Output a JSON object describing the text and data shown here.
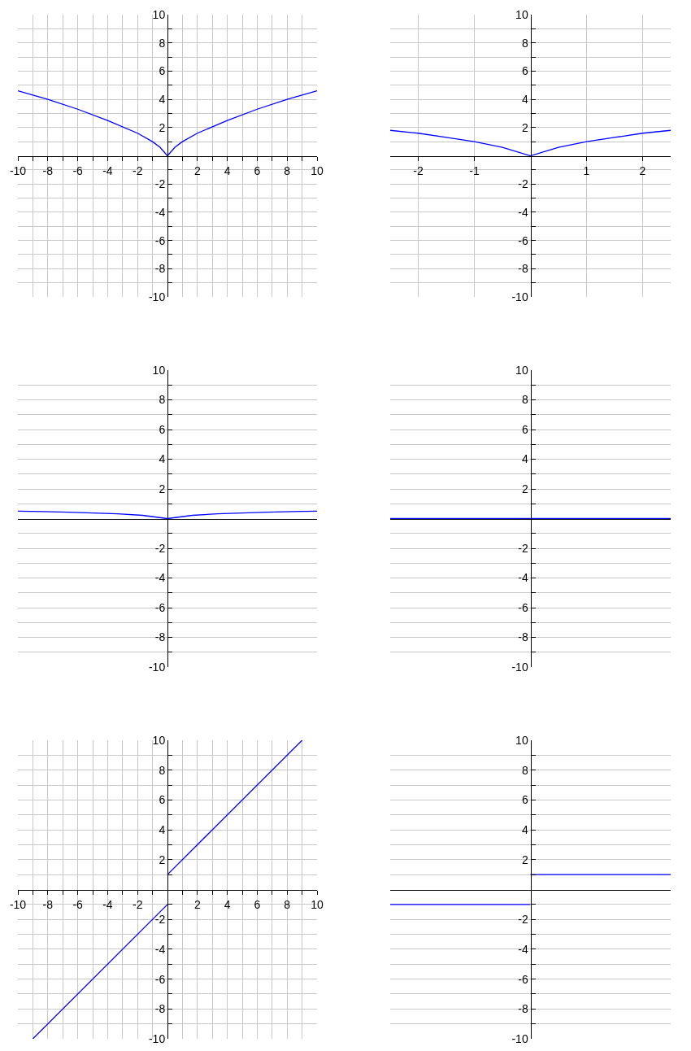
{
  "chart_data": [
    {
      "type": "line",
      "x": [
        -10,
        -8,
        -6,
        -4,
        -2,
        -1,
        -0.5,
        0,
        0.5,
        1,
        2,
        4,
        6,
        8,
        10
      ],
      "series": [
        {
          "color": "#0000ff",
          "values": [
            4.6,
            4.0,
            3.3,
            2.5,
            1.6,
            1.0,
            0.6,
            0,
            0.6,
            1.0,
            1.6,
            2.5,
            3.3,
            4.0,
            4.6
          ]
        }
      ],
      "xlim": [
        -10,
        10
      ],
      "xticks": [
        -10,
        {
          "value": -9,
          "label": null
        },
        -8,
        {
          "value": -7,
          "label": null
        },
        -6,
        {
          "value": -5,
          "label": null
        },
        -4,
        {
          "value": -3,
          "label": null
        },
        -2,
        {
          "value": -1,
          "label": null
        },
        {
          "value": 1,
          "label": null
        },
        2,
        {
          "value": 3,
          "label": null
        },
        4,
        {
          "value": 5,
          "label": null
        },
        6,
        {
          "value": 7,
          "label": null
        },
        8,
        {
          "value": 9,
          "label": null
        },
        10
      ],
      "ylim": [
        -10,
        10
      ],
      "yticks": [
        -10,
        {
          "value": -9,
          "label": null
        },
        -8,
        {
          "value": -7,
          "label": null
        },
        -6,
        {
          "value": -5,
          "label": null
        },
        -4,
        {
          "value": -3,
          "label": null
        },
        -2,
        {
          "value": -1,
          "label": null
        },
        {
          "value": 1,
          "label": null
        },
        2,
        {
          "value": 3,
          "label": null
        },
        4,
        {
          "value": 5,
          "label": null
        },
        6,
        {
          "value": 7,
          "label": null
        },
        8,
        {
          "value": 9,
          "label": null
        },
        10
      ],
      "grid": true,
      "marker": "none",
      "line_style": "solid"
    },
    {
      "type": "line",
      "x": [
        -2.5,
        -2,
        -1.5,
        -1,
        -0.5,
        0,
        0.5,
        1,
        1.5,
        2,
        2.5
      ],
      "series": [
        {
          "color": "#0000ff",
          "values": [
            1.8,
            1.6,
            1.3,
            1.0,
            0.6,
            0,
            0.6,
            1.0,
            1.3,
            1.6,
            1.8
          ]
        }
      ],
      "xlim": [
        -2.5,
        2.5
      ],
      "xticks": [
        -2,
        -1,
        1,
        2
      ],
      "ylim": [
        -10,
        10
      ],
      "yticks": [
        -10,
        {
          "value": -9,
          "label": null
        },
        -8,
        {
          "value": -7,
          "label": null
        },
        -6,
        {
          "value": -5,
          "label": null
        },
        -4,
        {
          "value": -3,
          "label": null
        },
        -2,
        {
          "value": -1,
          "label": null
        },
        {
          "value": 1,
          "label": null
        },
        2,
        {
          "value": 3,
          "label": null
        },
        4,
        {
          "value": 5,
          "label": null
        },
        6,
        {
          "value": 7,
          "label": null
        },
        8,
        {
          "value": 9,
          "label": null
        },
        10
      ],
      "grid": true,
      "marker": "none",
      "line_style": "solid"
    },
    {
      "type": "line",
      "categories": [
        null,
        null,
        null,
        null,
        null,
        null,
        null,
        null,
        null,
        null,
        null,
        null,
        null
      ],
      "series": [
        {
          "color": "#0000ff",
          "values": [
            0.5,
            0.47,
            0.43,
            0.38,
            0.32,
            0.22,
            0,
            0.22,
            0.32,
            0.38,
            0.43,
            0.47,
            0.5
          ]
        }
      ],
      "ylim": [
        -10,
        10
      ],
      "yticks": [
        -10,
        {
          "value": -9,
          "label": null
        },
        -8,
        {
          "value": -7,
          "label": null
        },
        -6,
        {
          "value": -5,
          "label": null
        },
        -4,
        {
          "value": -3,
          "label": null
        },
        -2,
        {
          "value": -1,
          "label": null
        },
        {
          "value": 1,
          "label": null
        },
        2,
        {
          "value": 3,
          "label": null
        },
        4,
        {
          "value": 5,
          "label": null
        },
        6,
        {
          "value": 7,
          "label": null
        },
        8,
        {
          "value": 9,
          "label": null
        },
        10
      ],
      "grid": "y",
      "tick_labels": "y",
      "marker": "none",
      "line_style": "solid"
    },
    {
      "type": "line",
      "categories": [
        null,
        null,
        null
      ],
      "series": [
        {
          "color": "#0000ff",
          "values": [
            0,
            0,
            0
          ]
        }
      ],
      "ylim": [
        -10,
        10
      ],
      "yticks": [
        -10,
        {
          "value": -9,
          "label": null
        },
        -8,
        {
          "value": -7,
          "label": null
        },
        -6,
        {
          "value": -5,
          "label": null
        },
        -4,
        {
          "value": -3,
          "label": null
        },
        -2,
        {
          "value": -1,
          "label": null
        },
        {
          "value": 1,
          "label": null
        },
        2,
        {
          "value": 3,
          "label": null
        },
        4,
        {
          "value": 5,
          "label": null
        },
        6,
        {
          "value": 7,
          "label": null
        },
        8,
        {
          "value": 9,
          "label": null
        },
        10
      ],
      "grid": "y",
      "tick_labels": "y",
      "marker": "none",
      "line_style": "solid"
    },
    {
      "type": "line",
      "series": [
        {
          "color": "#0000ff",
          "x": [
            -9,
            0
          ],
          "values": [
            -10,
            -1
          ]
        },
        {
          "color": "#0000ff",
          "x": [
            0,
            9
          ],
          "values": [
            1,
            10
          ]
        }
      ],
      "xlim": [
        -10,
        10
      ],
      "xticks": [
        -10,
        {
          "value": -9,
          "label": null
        },
        -8,
        {
          "value": -7,
          "label": null
        },
        -6,
        {
          "value": -5,
          "label": null
        },
        -4,
        {
          "value": -3,
          "label": null
        },
        -2,
        {
          "value": -1,
          "label": null
        },
        {
          "value": 1,
          "label": null
        },
        2,
        {
          "value": 3,
          "label": null
        },
        4,
        {
          "value": 5,
          "label": null
        },
        6,
        {
          "value": 7,
          "label": null
        },
        8,
        {
          "value": 9,
          "label": null
        },
        10
      ],
      "ylim": [
        -10,
        10
      ],
      "yticks": [
        -10,
        {
          "value": -9,
          "label": null
        },
        -8,
        {
          "value": -7,
          "label": null
        },
        -6,
        {
          "value": -5,
          "label": null
        },
        -4,
        {
          "value": -3,
          "label": null
        },
        -2,
        {
          "value": -1,
          "label": null
        },
        {
          "value": 1,
          "label": null
        },
        2,
        {
          "value": 3,
          "label": null
        },
        4,
        {
          "value": 5,
          "label": null
        },
        6,
        {
          "value": 7,
          "label": null
        },
        8,
        {
          "value": 9,
          "label": null
        },
        10
      ],
      "grid": true,
      "marker": "none",
      "line_style": "solid"
    },
    {
      "type": "line",
      "categories": [
        null,
        null,
        null
      ],
      "series": [
        {
          "color": "#0000ff",
          "values": [
            -1,
            -1,
            null
          ]
        },
        {
          "color": "#0000ff",
          "values": [
            null,
            1,
            1
          ]
        }
      ],
      "ylim": [
        -10,
        10
      ],
      "yticks": [
        -10,
        {
          "value": -9,
          "label": null
        },
        -8,
        {
          "value": -7,
          "label": null
        },
        -6,
        {
          "value": -5,
          "label": null
        },
        -4,
        {
          "value": -3,
          "label": null
        },
        -2,
        {
          "value": -1,
          "label": null
        },
        {
          "value": 1,
          "label": null
        },
        2,
        {
          "value": 3,
          "label": null
        },
        4,
        {
          "value": 5,
          "label": null
        },
        6,
        {
          "value": 7,
          "label": null
        },
        8,
        {
          "value": 9,
          "label": null
        },
        10
      ],
      "grid": "y",
      "tick_labels": "y",
      "marker": "none",
      "line_style": "solid"
    }
  ]
}
